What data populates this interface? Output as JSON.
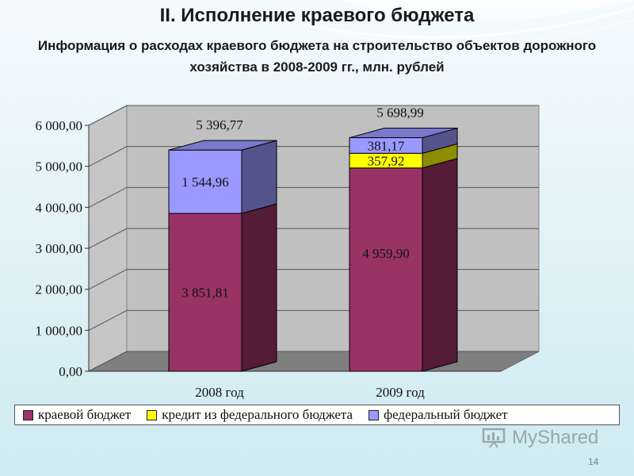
{
  "slide": {
    "title": "II. Исполнение краевого бюджета",
    "subtitle": "Информация о расходах краевого бюджета на строительство объектов дорожного хозяйства в 2008-2009 гг., млн. рублей",
    "page_number": "14",
    "logo_text": "MyShared"
  },
  "colors": {
    "kraevoy": "#993366",
    "kredit": "#ffff00",
    "federal": "#9999ff"
  },
  "chart_data": {
    "type": "bar",
    "stacked": true,
    "three_d": true,
    "categories": [
      "2008 год",
      "2009 год"
    ],
    "series": [
      {
        "name": "краевой бюджет",
        "values": [
          3851.81,
          4959.9
        ],
        "labels": [
          "3 851,81",
          "4 959,90"
        ]
      },
      {
        "name": "кредит из федерального бюджета",
        "values": [
          0,
          357.92
        ],
        "labels": [
          "",
          "357,92"
        ]
      },
      {
        "name": "федеральный бюджет",
        "values": [
          1544.96,
          381.17
        ],
        "labels": [
          "1 544,96",
          "381,17"
        ]
      }
    ],
    "totals": [
      5396.77,
      5698.99
    ],
    "total_labels": [
      "5 396,77",
      "5 698,99"
    ],
    "ylim": [
      0,
      6000
    ],
    "yticks": [
      0,
      1000,
      2000,
      3000,
      4000,
      5000,
      6000
    ],
    "ytick_labels": [
      "0,00",
      "1 000,00",
      "2 000,00",
      "3 000,00",
      "4 000,00",
      "5 000,00",
      "6 000,00"
    ],
    "grid": true,
    "legend_position": "bottom"
  }
}
